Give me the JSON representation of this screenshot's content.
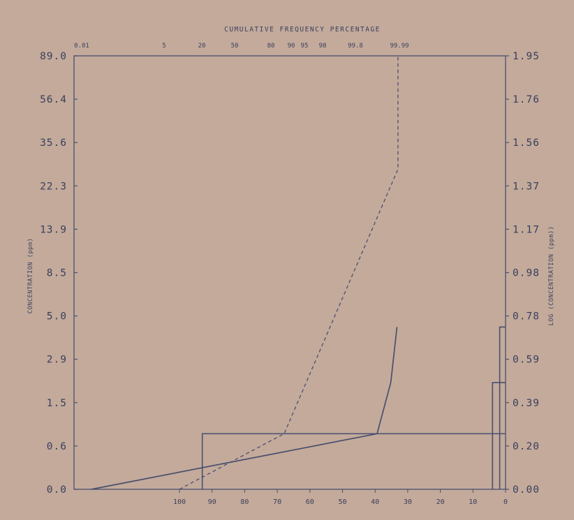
{
  "chart_data": {
    "type": "line",
    "title": "CUMULATIVE FREQUENCY PERCENTAGE",
    "ylabel_left": "CONCENTRATION (ppm)",
    "ylabel_right": "LOG (CONCENTRATION (ppm))",
    "y_left_ticks": [
      "89.0",
      "56.4",
      "35.6",
      "22.3",
      "13.9",
      "8.5",
      "5.0",
      "2.9",
      "1.5",
      "0.6",
      "0.0"
    ],
    "y_right_ticks": [
      "1.95",
      "1.76",
      "1.56",
      "1.37",
      "1.17",
      "0.98",
      "0.78",
      "0.59",
      "0.39",
      "0.20",
      "0.00"
    ],
    "x_top_ticks": [
      "0.01",
      "5",
      "20",
      "50",
      "80",
      "90",
      "95",
      "98",
      "99.8",
      "99.99"
    ],
    "x_bottom_ticks": [
      "100",
      "90",
      "80",
      "70",
      "60",
      "50",
      "40",
      "30",
      "20",
      "10",
      "0"
    ],
    "ylim_log": [
      0,
      1.95
    ],
    "x_bottom_range": [
      0,
      100
    ],
    "series": [
      {
        "style": "dashed",
        "points": [
          [
            100,
            0.0
          ],
          [
            67.9,
            0.25
          ],
          [
            33,
            1.44
          ],
          [
            33,
            1.95
          ]
        ]
      },
      {
        "style": "solid",
        "points": [
          [
            127,
            0.0
          ],
          [
            39.4,
            0.25
          ],
          [
            35.2,
            0.48
          ],
          [
            33.3,
            0.73
          ]
        ]
      }
    ],
    "histogram": {
      "bars": [
        {
          "top": 0.25,
          "left": 93,
          "right": 0
        },
        {
          "top": 0.48,
          "left": 4,
          "right": 0
        },
        {
          "top": 0.73,
          "left": 1.8,
          "right": 0
        }
      ]
    },
    "grid": false,
    "legend": "none"
  }
}
